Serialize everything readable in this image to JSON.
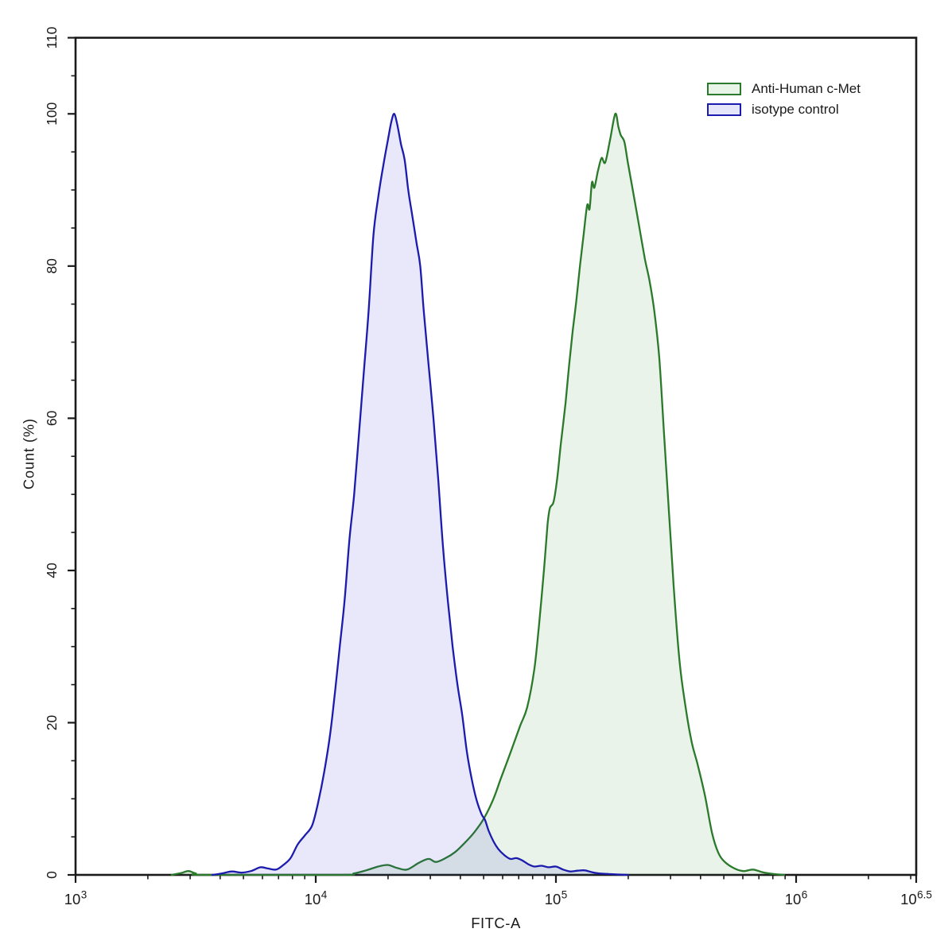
{
  "figure": {
    "background": "#ffffff",
    "axis_color": "#1a1a1a"
  },
  "chart_data": {
    "type": "area",
    "subtype": "flow-cytometry-overlay-histogram",
    "title": "",
    "xlabel": "FITC-A",
    "ylabel": "Count  (%)",
    "x_scale": "log10",
    "xlim_log10": [
      3,
      6.5
    ],
    "ylim": [
      0,
      110
    ],
    "y_major_ticks": [
      0,
      20,
      40,
      60,
      80,
      100,
      110
    ],
    "y_minor_tick_step": 5,
    "x_major_ticks": [
      {
        "log": 3,
        "base": "10",
        "sup": "3"
      },
      {
        "log": 4,
        "base": "10",
        "sup": "4"
      },
      {
        "log": 5,
        "base": "10",
        "sup": "5"
      },
      {
        "log": 6,
        "base": "10",
        "sup": "6"
      },
      {
        "log": 6.5,
        "base": "10",
        "sup": "6.5"
      }
    ],
    "grid": false,
    "legend_position": "top-right-inside",
    "series": [
      {
        "name": "Anti-Human c-Met",
        "stroke": "#2b7a2b",
        "fill_rgba": "rgba(46,139,46,0.105)",
        "legend_fill": "#e9f4e9",
        "peak_log10": 5.247,
        "peak_pct": 100,
        "points": [
          [
            3.4,
            0
          ],
          [
            3.44,
            0.25
          ],
          [
            3.47,
            0.5
          ],
          [
            3.5,
            0.2
          ],
          [
            3.54,
            0
          ],
          [
            4.1,
            0
          ],
          [
            4.16,
            0.2
          ],
          [
            4.21,
            0.6
          ],
          [
            4.26,
            1.1
          ],
          [
            4.3,
            1.3
          ],
          [
            4.34,
            0.9
          ],
          [
            4.38,
            0.7
          ],
          [
            4.43,
            1.6
          ],
          [
            4.47,
            2.1
          ],
          [
            4.5,
            1.7
          ],
          [
            4.54,
            2.2
          ],
          [
            4.58,
            3.0
          ],
          [
            4.62,
            4.2
          ],
          [
            4.66,
            5.6
          ],
          [
            4.7,
            7.4
          ],
          [
            4.74,
            10.0
          ],
          [
            4.77,
            12.6
          ],
          [
            4.81,
            16.0
          ],
          [
            4.85,
            19.5
          ],
          [
            4.88,
            22.0
          ],
          [
            4.91,
            27.0
          ],
          [
            4.93,
            33.0
          ],
          [
            4.95,
            40.0
          ],
          [
            4.965,
            46.0
          ],
          [
            4.975,
            48.2
          ],
          [
            4.99,
            49.0
          ],
          [
            5.005,
            52.0
          ],
          [
            5.02,
            56.5
          ],
          [
            5.04,
            62.0
          ],
          [
            5.055,
            67.0
          ],
          [
            5.07,
            71.5
          ],
          [
            5.085,
            75.5
          ],
          [
            5.1,
            80.0
          ],
          [
            5.115,
            84.0
          ],
          [
            5.13,
            88.0
          ],
          [
            5.14,
            87.5
          ],
          [
            5.15,
            91.0
          ],
          [
            5.16,
            90.3
          ],
          [
            5.175,
            92.5
          ],
          [
            5.19,
            94.2
          ],
          [
            5.205,
            93.6
          ],
          [
            5.225,
            96.5
          ],
          [
            5.247,
            100.0
          ],
          [
            5.26,
            98.3
          ],
          [
            5.27,
            97.2
          ],
          [
            5.285,
            96.3
          ],
          [
            5.3,
            93.5
          ],
          [
            5.32,
            90.0
          ],
          [
            5.345,
            85.5
          ],
          [
            5.37,
            81.0
          ],
          [
            5.39,
            78.0
          ],
          [
            5.41,
            74.0
          ],
          [
            5.43,
            68.0
          ],
          [
            5.45,
            58.0
          ],
          [
            5.47,
            48.0
          ],
          [
            5.49,
            38.0
          ],
          [
            5.515,
            28.0
          ],
          [
            5.54,
            22.0
          ],
          [
            5.565,
            17.5
          ],
          [
            5.59,
            14.5
          ],
          [
            5.62,
            10.5
          ],
          [
            5.65,
            5.5
          ],
          [
            5.675,
            3.0
          ],
          [
            5.7,
            1.8
          ],
          [
            5.74,
            0.9
          ],
          [
            5.78,
            0.5
          ],
          [
            5.82,
            0.7
          ],
          [
            5.86,
            0.35
          ],
          [
            5.9,
            0.15
          ],
          [
            5.95,
            0
          ]
        ]
      },
      {
        "name": "isotype control",
        "stroke": "#1b1bae",
        "fill_rgba": "rgba(42,42,205,0.105)",
        "legend_fill": "#e6e6fa",
        "peak_log10": 4.327,
        "peak_pct": 100,
        "points": [
          [
            3.57,
            0
          ],
          [
            3.61,
            0.2
          ],
          [
            3.65,
            0.45
          ],
          [
            3.69,
            0.3
          ],
          [
            3.73,
            0.5
          ],
          [
            3.77,
            1.0
          ],
          [
            3.8,
            0.85
          ],
          [
            3.835,
            0.7
          ],
          [
            3.865,
            1.3
          ],
          [
            3.895,
            2.2
          ],
          [
            3.925,
            4.0
          ],
          [
            3.955,
            5.2
          ],
          [
            3.985,
            6.5
          ],
          [
            4.01,
            9.5
          ],
          [
            4.035,
            13.5
          ],
          [
            4.06,
            18.5
          ],
          [
            4.08,
            24.0
          ],
          [
            4.1,
            30.0
          ],
          [
            4.12,
            36.0
          ],
          [
            4.14,
            44.0
          ],
          [
            4.16,
            50.0
          ],
          [
            4.18,
            58.0
          ],
          [
            4.2,
            66.0
          ],
          [
            4.22,
            74.0
          ],
          [
            4.24,
            84.0
          ],
          [
            4.26,
            89.0
          ],
          [
            4.28,
            93.0
          ],
          [
            4.3,
            96.5
          ],
          [
            4.315,
            99.0
          ],
          [
            4.327,
            100.0
          ],
          [
            4.34,
            98.5
          ],
          [
            4.355,
            96.0
          ],
          [
            4.37,
            94.0
          ],
          [
            4.385,
            90.0
          ],
          [
            4.4,
            87.0
          ],
          [
            4.42,
            83.0
          ],
          [
            4.435,
            80.0
          ],
          [
            4.45,
            74.0
          ],
          [
            4.47,
            67.0
          ],
          [
            4.49,
            60.0
          ],
          [
            4.51,
            52.0
          ],
          [
            4.53,
            43.0
          ],
          [
            4.55,
            36.0
          ],
          [
            4.57,
            30.0
          ],
          [
            4.59,
            25.0
          ],
          [
            4.61,
            21.0
          ],
          [
            4.63,
            16.0
          ],
          [
            4.65,
            12.5
          ],
          [
            4.67,
            9.8
          ],
          [
            4.69,
            8.0
          ],
          [
            4.705,
            7.2
          ],
          [
            4.72,
            5.8
          ],
          [
            4.74,
            4.4
          ],
          [
            4.76,
            3.4
          ],
          [
            4.785,
            2.6
          ],
          [
            4.81,
            2.1
          ],
          [
            4.835,
            2.2
          ],
          [
            4.86,
            1.9
          ],
          [
            4.885,
            1.4
          ],
          [
            4.91,
            1.1
          ],
          [
            4.94,
            1.2
          ],
          [
            4.97,
            1.0
          ],
          [
            5.0,
            1.1
          ],
          [
            5.03,
            0.7
          ],
          [
            5.06,
            0.45
          ],
          [
            5.09,
            0.55
          ],
          [
            5.12,
            0.6
          ],
          [
            5.15,
            0.35
          ],
          [
            5.18,
            0.2
          ],
          [
            5.22,
            0.12
          ],
          [
            5.26,
            0.05
          ],
          [
            5.3,
            0
          ]
        ]
      }
    ]
  }
}
